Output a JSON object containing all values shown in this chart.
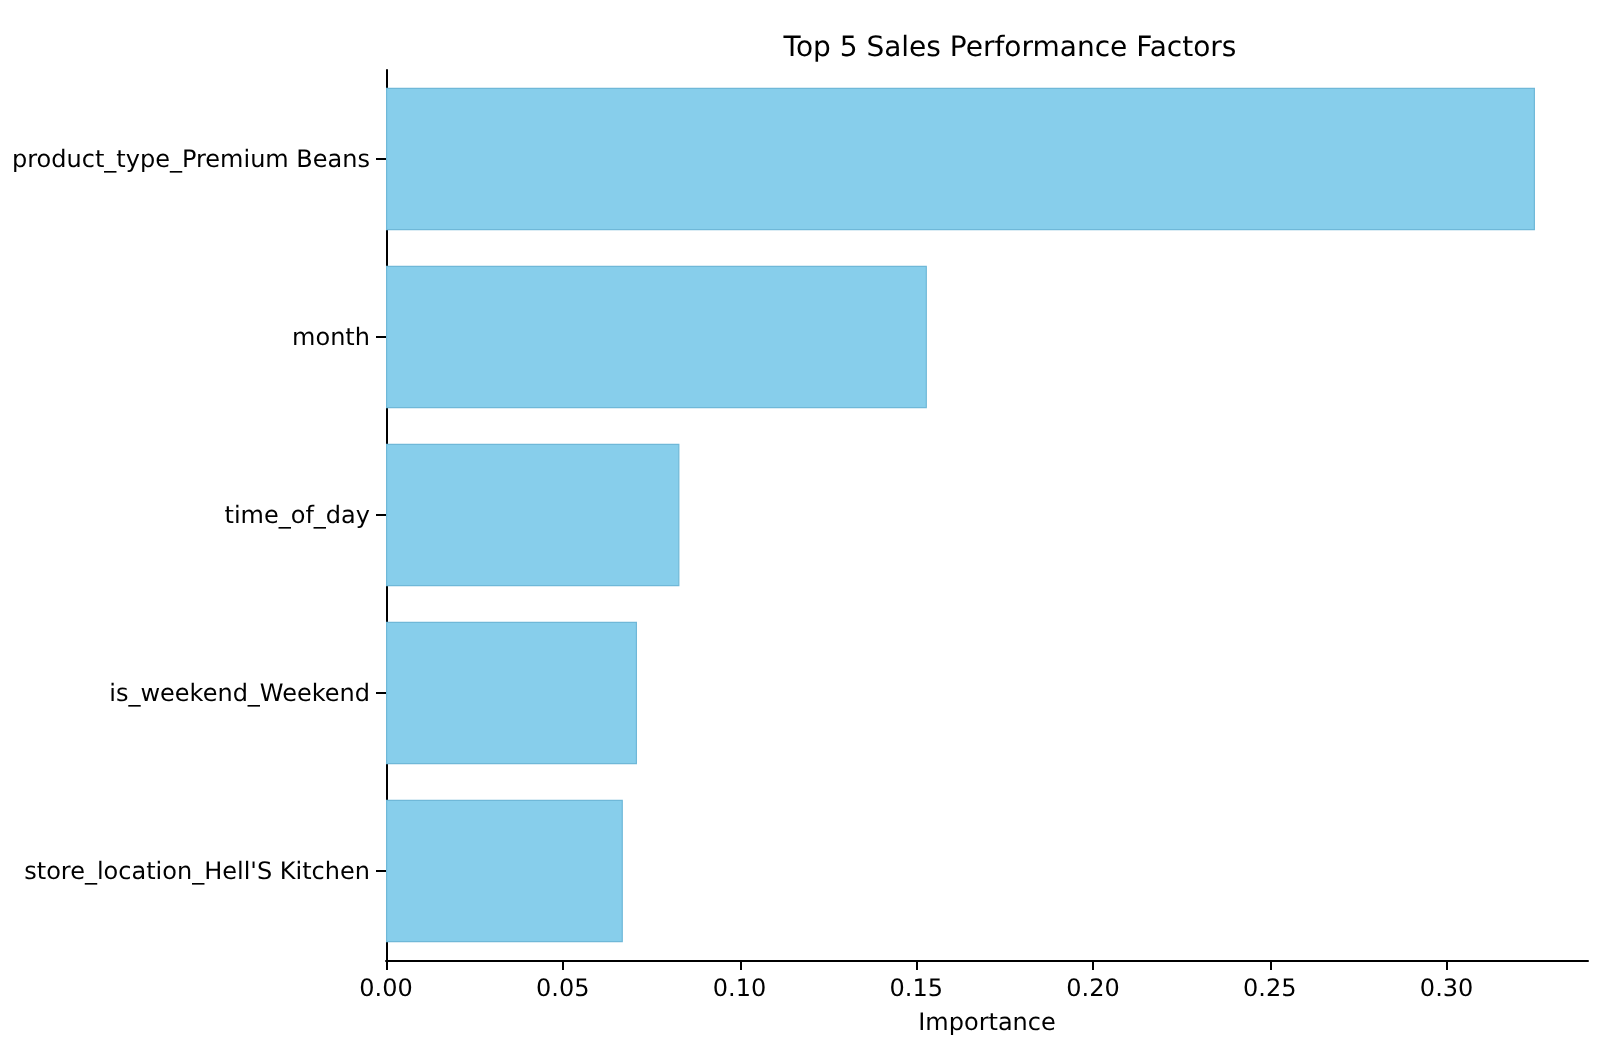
{
  "chart_data": {
    "type": "bar",
    "orientation": "horizontal",
    "title": "Top 5 Sales Performance Factors",
    "xlabel": "Importance",
    "categories": [
      "product_type_Premium Beans",
      "month",
      "time_of_day",
      "is_weekend_Weekend",
      "store_location_Hell'S Kitchen"
    ],
    "values": [
      0.325,
      0.153,
      0.083,
      0.071,
      0.067
    ],
    "color": "#87ceeb",
    "xlim": [
      0,
      0.34
    ],
    "xticks": [
      {
        "value": 0,
        "label": "0.00"
      },
      {
        "value": 0.05,
        "label": "0.05"
      },
      {
        "value": 0.1,
        "label": "0.10"
      },
      {
        "value": 0.15,
        "label": "0.15"
      },
      {
        "value": 0.2,
        "label": "0.20"
      },
      {
        "value": 0.25,
        "label": "0.25"
      },
      {
        "value": 0.3,
        "label": "0.30"
      }
    ],
    "grid": false
  }
}
